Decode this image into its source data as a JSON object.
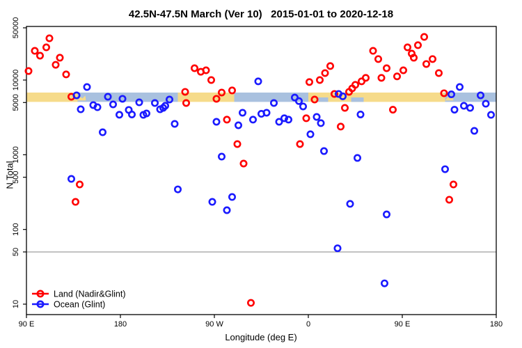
{
  "chart_data": {
    "type": "scatter",
    "title": "42.5N-47.5N March (Ver 10)   2015-01-01 to 2020-12-18",
    "xlabel": "Longitude (deg E)",
    "ylabel": "N Total",
    "x_axis": {
      "range": [
        90,
        540
      ],
      "ticks": [
        {
          "lon": 90,
          "label": "90 E"
        },
        {
          "lon": 180,
          "label": "180"
        },
        {
          "lon": 270,
          "label": "90 W"
        },
        {
          "lon": 360,
          "label": "0"
        },
        {
          "lon": 450,
          "label": "90 E"
        },
        {
          "lon": 540,
          "label": "180"
        }
      ]
    },
    "y_axis": {
      "scale": "log",
      "range": [
        8,
        52000
      ],
      "ticks": [
        {
          "value": 10,
          "label": "10"
        },
        {
          "value": 50,
          "label": "50"
        },
        {
          "value": 100,
          "label": "100"
        },
        {
          "value": 500,
          "label": "500"
        },
        {
          "value": 1000,
          "label": "1000"
        },
        {
          "value": 5000,
          "label": "5000"
        },
        {
          "value": 10000,
          "label": "10000"
        },
        {
          "value": 50000,
          "label": "50000"
        }
      ]
    },
    "reference_line": {
      "value": 50,
      "color": "#848484"
    },
    "coast_band": {
      "n_range": [
        5100,
        6800
      ],
      "colors": {
        "land": "#F6DB8A",
        "ocean": "#A9C1DF"
      },
      "segments": [
        {
          "from": 90,
          "to": 139,
          "surface": "land"
        },
        {
          "from": 139,
          "to": 235,
          "surface": "ocean"
        },
        {
          "from": 235,
          "to": 289,
          "surface": "land"
        },
        {
          "from": 289,
          "to": 360,
          "surface": "ocean"
        },
        {
          "from": 360,
          "to": 491,
          "surface": "land"
        },
        {
          "from": 491,
          "to": 540,
          "surface": "ocean"
        }
      ],
      "islands": [
        {
          "lon": 143
        },
        {
          "lon": 495
        }
      ],
      "water_patches": [
        {
          "from": 369,
          "to": 379
        },
        {
          "from": 401,
          "to": 413
        }
      ]
    },
    "legend": {
      "position": "bottom-left",
      "entries": [
        {
          "label": "Land (Nadir&Glint)",
          "color": "#FF0000"
        },
        {
          "label": "Ocean (Glint)",
          "color": "#1A1AFF"
        }
      ]
    },
    "series": [
      {
        "name": "Land (Nadir&Glint)",
        "color": "#FF0000",
        "marker": "open-circle",
        "points": [
          [
            92,
            13200
          ],
          [
            98,
            24600
          ],
          [
            103,
            21200
          ],
          [
            109,
            27400
          ],
          [
            112,
            36200
          ],
          [
            118,
            16000
          ],
          [
            122,
            19900
          ],
          [
            128,
            11900
          ],
          [
            133,
            5980
          ],
          [
            137,
            234
          ],
          [
            141,
            400
          ],
          [
            242,
            6950
          ],
          [
            243,
            4930
          ],
          [
            251,
            14400
          ],
          [
            257,
            12900
          ],
          [
            262,
            13500
          ],
          [
            267,
            10000
          ],
          [
            272,
            5610
          ],
          [
            277,
            6800
          ],
          [
            282,
            2950
          ],
          [
            287,
            7260
          ],
          [
            292,
            1390
          ],
          [
            298,
            762
          ],
          [
            305,
            10.4
          ],
          [
            352,
            1390
          ],
          [
            358,
            3080
          ],
          [
            361,
            9400
          ],
          [
            366,
            5480
          ],
          [
            371,
            10000
          ],
          [
            376,
            12400
          ],
          [
            381,
            15400
          ],
          [
            385,
            6520
          ],
          [
            391,
            2380
          ],
          [
            395,
            4240
          ],
          [
            399,
            6950
          ],
          [
            402,
            7730
          ],
          [
            405,
            8620
          ],
          [
            411,
            9600
          ],
          [
            415,
            10700
          ],
          [
            422,
            24600
          ],
          [
            427,
            19100
          ],
          [
            430,
            10700
          ],
          [
            435,
            14400
          ],
          [
            441,
            4010
          ],
          [
            445,
            11200
          ],
          [
            451,
            13500
          ],
          [
            455,
            27400
          ],
          [
            459,
            22600
          ],
          [
            461,
            19900
          ],
          [
            465,
            29300
          ],
          [
            471,
            37800
          ],
          [
            473,
            16400
          ],
          [
            479,
            19100
          ],
          [
            485,
            12400
          ],
          [
            490,
            6660
          ],
          [
            495,
            250
          ],
          [
            499,
            400
          ]
        ]
      },
      {
        "name": "Ocean (Glint)",
        "color": "#1A1AFF",
        "marker": "open-circle",
        "points": [
          [
            133,
            475
          ],
          [
            138,
            6240
          ],
          [
            142,
            4060
          ],
          [
            148,
            8070
          ],
          [
            154,
            4620
          ],
          [
            158,
            4330
          ],
          [
            163,
            2000
          ],
          [
            168,
            5980
          ],
          [
            173,
            4720
          ],
          [
            179,
            3430
          ],
          [
            182,
            5610
          ],
          [
            188,
            3980
          ],
          [
            191,
            3460
          ],
          [
            198,
            5030
          ],
          [
            202,
            3420
          ],
          [
            205,
            3570
          ],
          [
            213,
            4930
          ],
          [
            218,
            4060
          ],
          [
            221,
            4240
          ],
          [
            223,
            4520
          ],
          [
            227,
            5480
          ],
          [
            232,
            2590
          ],
          [
            235,
            344
          ],
          [
            268,
            234
          ],
          [
            272,
            2760
          ],
          [
            277,
            944
          ],
          [
            282,
            181
          ],
          [
            287,
            272
          ],
          [
            293,
            2480
          ],
          [
            297,
            3650
          ],
          [
            307,
            2950
          ],
          [
            312,
            9600
          ],
          [
            315,
            3530
          ],
          [
            320,
            3650
          ],
          [
            327,
            4930
          ],
          [
            332,
            2760
          ],
          [
            337,
            3080
          ],
          [
            341,
            2950
          ],
          [
            347,
            5830
          ],
          [
            351,
            5230
          ],
          [
            355,
            4430
          ],
          [
            362,
            1880
          ],
          [
            368,
            3210
          ],
          [
            372,
            2650
          ],
          [
            375,
            1120
          ],
          [
            388,
            56
          ],
          [
            389,
            6520
          ],
          [
            393,
            6060
          ],
          [
            400,
            220
          ],
          [
            407,
            906
          ],
          [
            410,
            3460
          ],
          [
            433,
            19
          ],
          [
            435,
            159
          ],
          [
            491,
            641
          ],
          [
            497,
            6440
          ],
          [
            500,
            4010
          ],
          [
            505,
            8070
          ],
          [
            509,
            4520
          ],
          [
            515,
            4240
          ],
          [
            519,
            2090
          ],
          [
            525,
            6240
          ],
          [
            530,
            4820
          ],
          [
            535,
            3420
          ]
        ]
      }
    ]
  }
}
